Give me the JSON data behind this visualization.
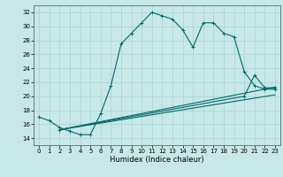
{
  "xlabel": "Humidex (Indice chaleur)",
  "ylabel": "",
  "background_color": "#c8e8e8",
  "grid_color": "#a8d0d0",
  "line_color": "#006868",
  "xlim": [
    -0.5,
    23.5
  ],
  "ylim": [
    13,
    33
  ],
  "yticks": [
    14,
    16,
    18,
    20,
    22,
    24,
    26,
    28,
    30,
    32
  ],
  "xticks": [
    0,
    1,
    2,
    3,
    4,
    5,
    6,
    7,
    8,
    9,
    10,
    11,
    12,
    13,
    14,
    15,
    16,
    17,
    18,
    19,
    20,
    21,
    22,
    23
  ],
  "curve1_x": [
    0,
    1,
    2,
    3,
    4,
    5,
    6,
    7,
    8,
    9,
    10,
    11,
    12,
    13,
    14,
    15,
    16,
    17,
    18,
    19,
    20,
    21,
    22,
    23
  ],
  "curve1_y": [
    17.0,
    16.5,
    15.5,
    15.0,
    14.5,
    14.5,
    17.5,
    21.5,
    27.5,
    29.0,
    30.5,
    32.0,
    31.5,
    31.0,
    29.5,
    27.0,
    30.5,
    30.5,
    29.0,
    28.5,
    23.5,
    21.5,
    21.0,
    21.0
  ],
  "line2_x": [
    2,
    23
  ],
  "line2_y": [
    15.2,
    21.3
  ],
  "line3_x": [
    2,
    23
  ],
  "line3_y": [
    15.2,
    20.2
  ],
  "line4_x": [
    2,
    20,
    21,
    22,
    23
  ],
  "line4_y": [
    15.2,
    20.0,
    23.0,
    21.2,
    21.2
  ]
}
